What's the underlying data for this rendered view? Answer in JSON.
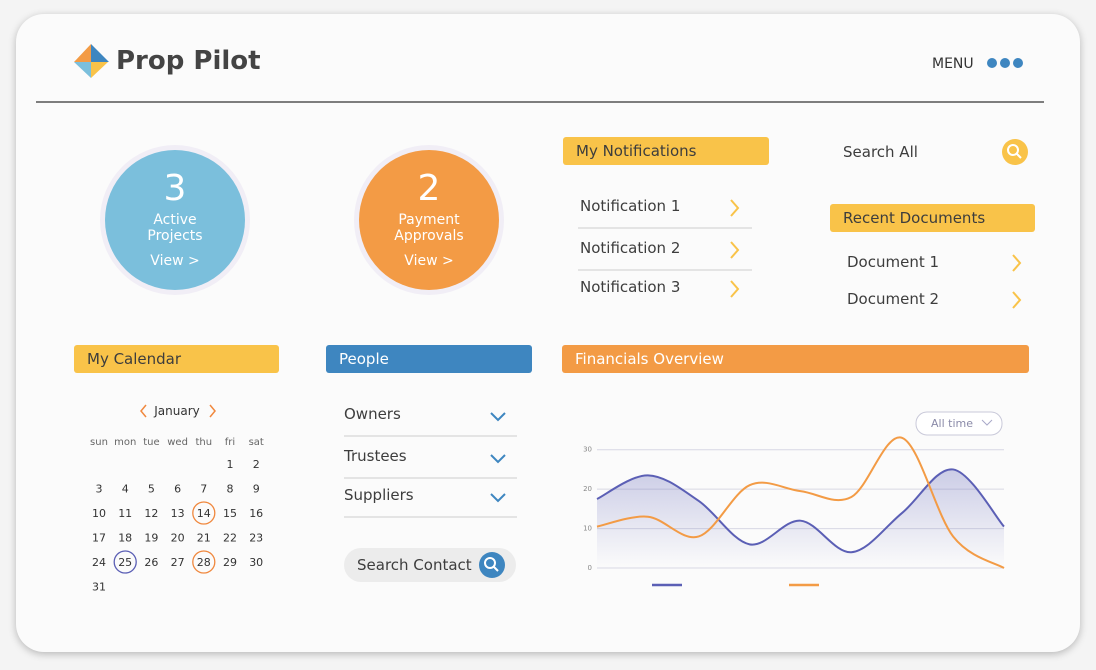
{
  "header": {
    "brand": "Prop Pilot",
    "menu": "MENU"
  },
  "stats": [
    {
      "value": 3,
      "label": "Active Projects",
      "link": "View >",
      "color": "#7bbfdc"
    },
    {
      "value": 2,
      "label": "Payment Approvals",
      "link": "View >",
      "color": "#f39b45"
    }
  ],
  "notifications": {
    "title": "My Notifications",
    "items": [
      "Notification 1",
      "Notification 2",
      "Notification 3"
    ]
  },
  "search_all": "Search All",
  "documents": {
    "title": "Recent Documents",
    "items": [
      "Document 1",
      "Document 2"
    ]
  },
  "calendar": {
    "title": "My Calendar",
    "month": "January",
    "weekdays": [
      "sun",
      "mon",
      "tue",
      "wed",
      "thu",
      "fri",
      "sat"
    ],
    "weeks": [
      [
        null,
        null,
        null,
        null,
        null,
        1,
        2
      ],
      [
        3,
        4,
        5,
        6,
        7,
        8,
        9
      ],
      [
        10,
        11,
        12,
        13,
        14,
        15,
        16
      ],
      [
        17,
        18,
        19,
        20,
        21,
        22,
        23
      ],
      [
        24,
        25,
        26,
        27,
        28,
        29,
        30
      ],
      [
        31
      ]
    ],
    "circled": [
      {
        "day": 14,
        "color": "#f0883e"
      },
      {
        "day": 25,
        "color": "#5b5fb5"
      },
      {
        "day": 28,
        "color": "#f0883e"
      }
    ]
  },
  "people": {
    "title": "People",
    "groups": [
      "Owners",
      "Trustees",
      "Suppliers"
    ],
    "search": "Search Contact"
  },
  "chart_data": {
    "type": "line",
    "title": "Financials Overview",
    "filter": "All time",
    "categories": [
      null,
      null,
      null,
      null,
      null,
      null,
      null,
      null,
      null
    ],
    "series": [
      {
        "color": "#5b5fb5",
        "fill": true,
        "values": [
          17.5,
          23.5,
          17,
          6,
          12,
          4,
          14,
          25,
          10.5
        ]
      },
      {
        "color": "#f39b45",
        "fill": false,
        "values": [
          10.5,
          13,
          8,
          21,
          19.5,
          18,
          33,
          8,
          0
        ]
      }
    ],
    "ylim": [
      0,
      35
    ],
    "yticks": [
      0,
      10,
      20,
      30
    ],
    "grid": true
  }
}
